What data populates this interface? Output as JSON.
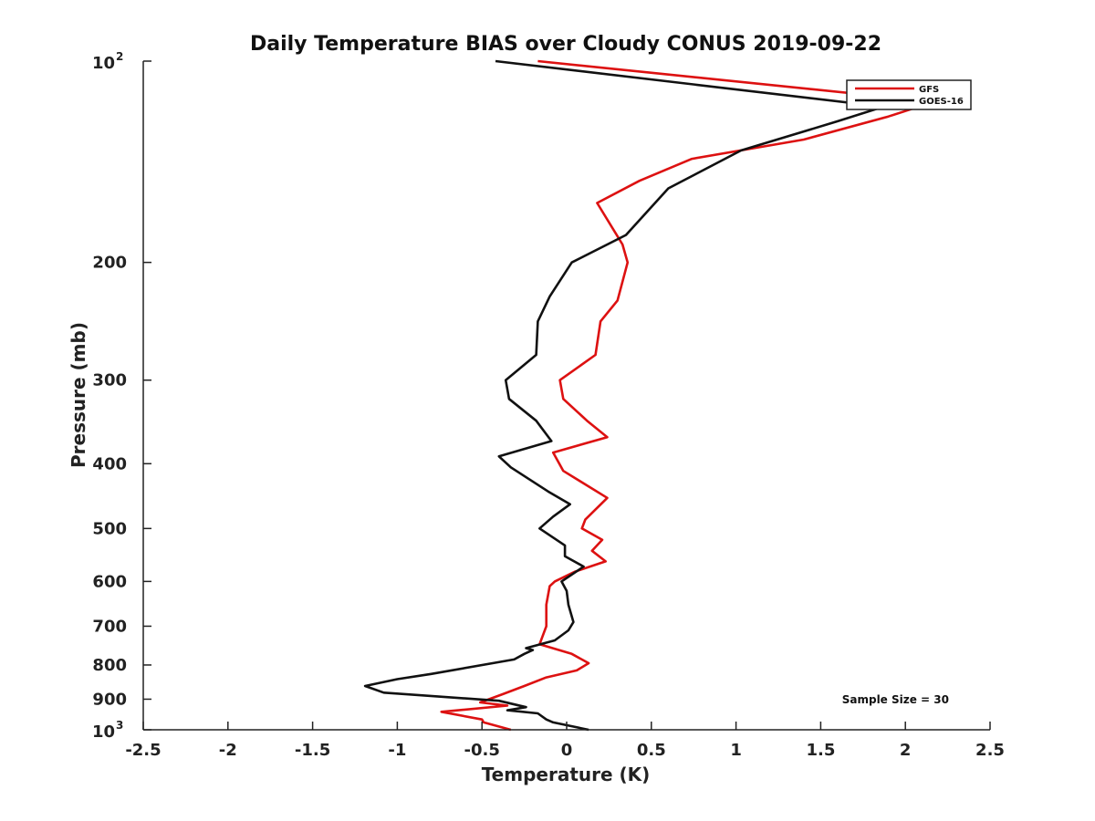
{
  "chart_data": {
    "type": "line",
    "title": "Daily Temperature BIAS over Cloudy CONUS 2019-09-22",
    "xlabel": "Temperature (K)",
    "ylabel": "Pressure (mb)",
    "xlim": [
      -2.5,
      2.5
    ],
    "ylim": [
      100,
      1000
    ],
    "y_scale": "log",
    "y_reversed": true,
    "grid": false,
    "legend_position": "top-right",
    "x_ticks": [
      "-2.5",
      "-2",
      "-1.5",
      "-1",
      "-0.5",
      "0",
      "0.5",
      "1",
      "1.5",
      "2",
      "2.5"
    ],
    "x_tick_values": [
      -2.5,
      -2,
      -1.5,
      -1,
      -0.5,
      0,
      0.5,
      1,
      1.5,
      2,
      2.5
    ],
    "y_ticks": [
      {
        "value": 100,
        "base": "10",
        "exp": "2"
      },
      {
        "value": 200,
        "label": "200"
      },
      {
        "value": 300,
        "label": "300"
      },
      {
        "value": 400,
        "label": "400"
      },
      {
        "value": 500,
        "label": "500"
      },
      {
        "value": 600,
        "label": "600"
      },
      {
        "value": 700,
        "label": "700"
      },
      {
        "value": 800,
        "label": "800"
      },
      {
        "value": 900,
        "label": "900"
      },
      {
        "value": 1000,
        "base": "10",
        "exp": "3"
      }
    ],
    "annotation": "Sample Size = 30",
    "series": [
      {
        "name": "GFS",
        "color": "#dd1111",
        "points": [
          [
            -0.17,
            100
          ],
          [
            2.17,
            115
          ],
          [
            1.9,
            121
          ],
          [
            1.4,
            131
          ],
          [
            0.74,
            140
          ],
          [
            0.43,
            151
          ],
          [
            0.18,
            163
          ],
          [
            0.33,
            188
          ],
          [
            0.36,
            200
          ],
          [
            0.3,
            228
          ],
          [
            0.2,
            245
          ],
          [
            0.17,
            275
          ],
          [
            -0.04,
            300
          ],
          [
            -0.02,
            320
          ],
          [
            0.12,
            345
          ],
          [
            0.24,
            365
          ],
          [
            -0.08,
            385
          ],
          [
            -0.02,
            410
          ],
          [
            0.24,
            450
          ],
          [
            0.11,
            485
          ],
          [
            0.09,
            500
          ],
          [
            0.21,
            520
          ],
          [
            0.15,
            540
          ],
          [
            0.23,
            560
          ],
          [
            0.05,
            580
          ],
          [
            -0.07,
            600
          ],
          [
            -0.1,
            610
          ],
          [
            -0.12,
            650
          ],
          [
            -0.12,
            700
          ],
          [
            -0.16,
            745
          ],
          [
            0.03,
            770
          ],
          [
            0.13,
            795
          ],
          [
            0.06,
            815
          ],
          [
            -0.12,
            835
          ],
          [
            -0.25,
            860
          ],
          [
            -0.38,
            885
          ],
          [
            -0.51,
            910
          ],
          [
            -0.35,
            920
          ],
          [
            -0.74,
            940
          ],
          [
            -0.5,
            965
          ],
          [
            -0.49,
            975
          ],
          [
            -0.33,
            1000
          ]
        ]
      },
      {
        "name": "GOES-16",
        "color": "#111111",
        "points": [
          [
            -0.42,
            100
          ],
          [
            1.87,
            117
          ],
          [
            1.6,
            123
          ],
          [
            1.03,
            136
          ],
          [
            0.6,
            155
          ],
          [
            0.35,
            182
          ],
          [
            0.03,
            200
          ],
          [
            -0.1,
            225
          ],
          [
            -0.17,
            245
          ],
          [
            -0.18,
            275
          ],
          [
            -0.36,
            300
          ],
          [
            -0.34,
            320
          ],
          [
            -0.18,
            345
          ],
          [
            -0.09,
            370
          ],
          [
            -0.4,
            390
          ],
          [
            -0.33,
            405
          ],
          [
            -0.11,
            440
          ],
          [
            0.02,
            460
          ],
          [
            -0.08,
            480
          ],
          [
            -0.16,
            500
          ],
          [
            -0.01,
            530
          ],
          [
            -0.01,
            550
          ],
          [
            0.1,
            570
          ],
          [
            -0.03,
            600
          ],
          [
            0.0,
            620
          ],
          [
            0.01,
            650
          ],
          [
            0.04,
            690
          ],
          [
            0.01,
            710
          ],
          [
            -0.07,
            735
          ],
          [
            -0.24,
            755
          ],
          [
            -0.2,
            760
          ],
          [
            -0.25,
            770
          ],
          [
            -0.31,
            785
          ],
          [
            -0.8,
            825
          ],
          [
            -1.0,
            840
          ],
          [
            -1.19,
            860
          ],
          [
            -1.08,
            880
          ],
          [
            -0.4,
            905
          ],
          [
            -0.24,
            925
          ],
          [
            -0.35,
            935
          ],
          [
            -0.17,
            945
          ],
          [
            -0.12,
            965
          ],
          [
            -0.08,
            975
          ],
          [
            0.13,
            1000
          ]
        ]
      }
    ]
  }
}
